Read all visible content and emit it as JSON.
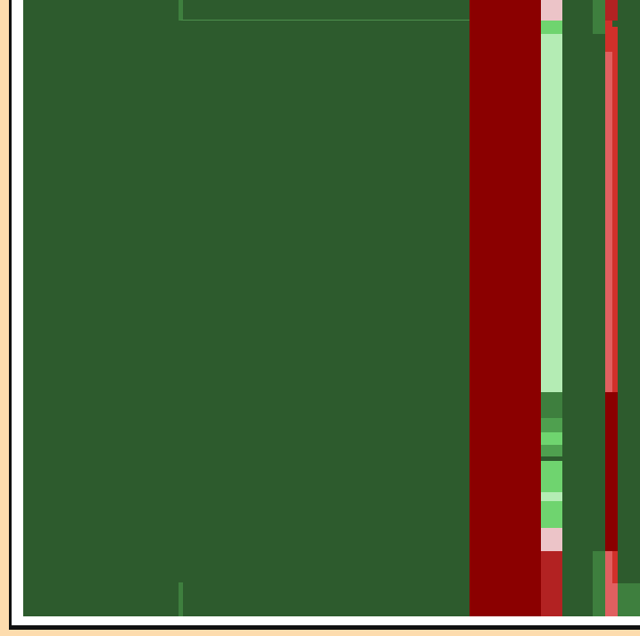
{
  "colors": {
    "background": "#fddcae",
    "frame_dark": "#111111",
    "frame_light": "#ffffff",
    "canvas_green": "#2d5b2d",
    "dark_red": "#8b0000",
    "light_green": "#b4ecb4",
    "mid_green": "#6fd46f",
    "muted_green": "#3e7f3e",
    "pink": "#ecc4c8",
    "red": "#b22222",
    "salmon": "#e06060",
    "bright_red": "#d0302a"
  }
}
